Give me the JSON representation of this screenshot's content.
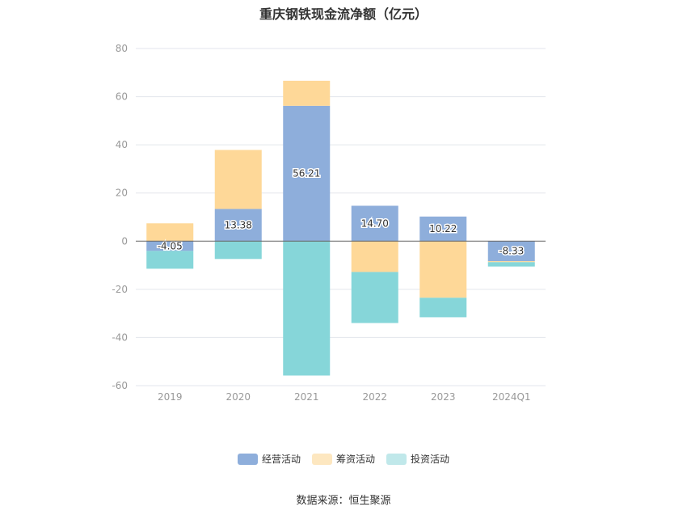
{
  "chart_data": {
    "type": "bar",
    "stacked": true,
    "title": "重庆钢铁现金流净额（亿元）",
    "categories": [
      "2019",
      "2020",
      "2021",
      "2022",
      "2023",
      "2024Q1"
    ],
    "ylim": [
      -60,
      80
    ],
    "yticks": [
      80,
      60,
      40,
      20,
      0,
      -20,
      -40,
      -60
    ],
    "grid": true,
    "legend_position": "bottom",
    "series": [
      {
        "name": "经营活动",
        "color": "#8eaedb",
        "values": [
          -4.05,
          13.38,
          56.21,
          14.7,
          10.22,
          -8.33
        ],
        "labels": [
          "-4.05",
          "13.38",
          "56.21",
          "14.70",
          "10.22",
          "-8.33"
        ]
      },
      {
        "name": "筹资活动",
        "color": "#fed898",
        "values": [
          7.4,
          24.5,
          10.4,
          -12.8,
          -23.5,
          -0.4
        ]
      },
      {
        "name": "投资活动",
        "color": "#86d6d9",
        "values": [
          -7.4,
          -7.4,
          -55.8,
          -21.2,
          -8.1,
          -1.8
        ]
      }
    ],
    "legend_colors": [
      "#8eaedb",
      "#fde7c0",
      "#c0e8ea"
    ]
  },
  "source": "数据来源：恒生聚源"
}
